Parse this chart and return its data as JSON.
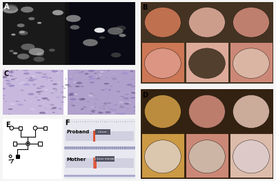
{
  "panel_labels": [
    "A",
    "B",
    "C",
    "D",
    "E",
    "F"
  ],
  "panel_label_fontsize": 7,
  "panel_label_fontweight": "bold",
  "bg_color": "#ffffff",
  "panel_A_bg": "#000000",
  "panel_B_bg": "#cc6644",
  "panel_C_bg": "#aaaacc",
  "panel_D_bg": "#cc8866",
  "panel_E_bg": "#ffffff",
  "panel_F_bg": "#e8e8f0",
  "mri_color1": "#303030",
  "mri_color2": "#202030",
  "proband_bar_color": "#e05030",
  "mother_bar_colors": [
    "#e05030",
    "#e05030",
    "#e05030",
    "#e05030"
  ],
  "label_proband": "Proband",
  "label_mother": "Mother",
  "chromosome_tick_color": "#999999",
  "chromosome_bg": "#e8e8f0",
  "chromosome_line_color": "#9999bb",
  "dark_box_color": "#555566",
  "endoscopy_colors_B": [
    "#cc7755",
    "#ddaa99",
    "#cc8877",
    "#dd9988",
    "#443322",
    "#ddbbaa"
  ],
  "endoscopy_colors_D": [
    "#cc9944",
    "#cc8877",
    "#ddbbaa",
    "#ddccbb",
    "#ccbbaa",
    "#ddcccc"
  ],
  "histology_color": "#9988bb",
  "arrow_color": "#333333",
  "figure_bg": "#f5f5f5"
}
